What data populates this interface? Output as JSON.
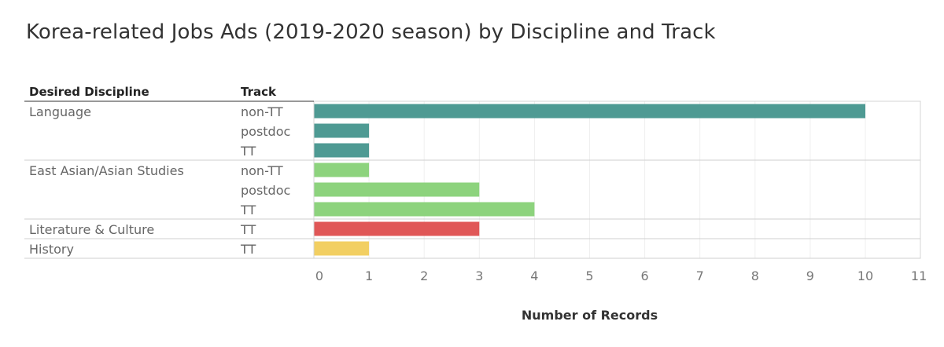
{
  "title": "Korea-related Jobs Ads (2019-2020 season) by Discipline and Track",
  "headers": {
    "discipline": "Desired Discipline",
    "track": "Track"
  },
  "chart_data": {
    "type": "bar",
    "orientation": "horizontal",
    "title": "Korea-related Jobs Ads (2019-2020 season) by Discipline and Track",
    "xlabel": "Number of Records",
    "xlim": [
      0,
      11
    ],
    "xticks": [
      0,
      1,
      2,
      3,
      4,
      5,
      6,
      7,
      8,
      9,
      10,
      11
    ],
    "grid": true,
    "groups": [
      {
        "discipline": "Language",
        "color": "#4e9a93",
        "rows": [
          {
            "track": "non-TT",
            "value": 10
          },
          {
            "track": "postdoc",
            "value": 1
          },
          {
            "track": "TT",
            "value": 1
          }
        ]
      },
      {
        "discipline": "East Asian/Asian Studies",
        "color": "#8dd37d",
        "rows": [
          {
            "track": "non-TT",
            "value": 1
          },
          {
            "track": "postdoc",
            "value": 3
          },
          {
            "track": "TT",
            "value": 4
          }
        ]
      },
      {
        "discipline": "Literature & Culture",
        "color": "#e05757",
        "rows": [
          {
            "track": "TT",
            "value": 3
          }
        ]
      },
      {
        "discipline": "History",
        "color": "#f2cf62",
        "rows": [
          {
            "track": "TT",
            "value": 1
          }
        ]
      }
    ]
  }
}
